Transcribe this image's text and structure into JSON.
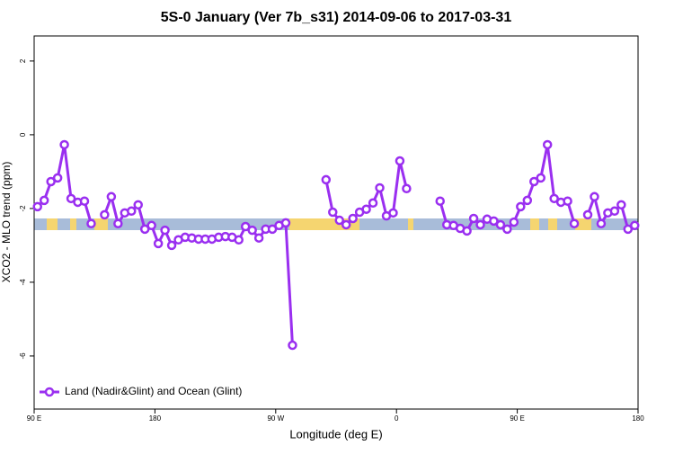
{
  "chart_data": {
    "type": "line",
    "title": "5S-0 January (Ver 7b_s31)   2014-09-06 to 2017-03-31",
    "x_label": "Longitude (deg E)",
    "y_label": "XCO2 - MLO trend (ppm)",
    "x": [
      92.5,
      97.5,
      102.5,
      107.5,
      112.5,
      117.5,
      122.5,
      127.5,
      132.5,
      137.5,
      142.5,
      147.5,
      152.5,
      157.5,
      162.5,
      167.5,
      172.5,
      177.5,
      182.5,
      187.5,
      192.5,
      197.5,
      202.5,
      207.5,
      212.5,
      217.5,
      222.5,
      227.5,
      232.5,
      237.5,
      242.5,
      247.5,
      252.5,
      257.5,
      262.5,
      267.5,
      272.5,
      277.5,
      282.5,
      287.5,
      292.5,
      297.5,
      302.5,
      307.5,
      312.5,
      317.5,
      322.5,
      327.5,
      332.5,
      337.5,
      342.5,
      347.5,
      352.5,
      357.5,
      362.5,
      367.5,
      372.5,
      377.5,
      382.5,
      387.5,
      392.5,
      397.5,
      402.5,
      407.5,
      412.5,
      417.5,
      422.5,
      427.5,
      432.5,
      437.5,
      442.5,
      447.5,
      452.5,
      457.5,
      462.5,
      467.5,
      472.5,
      477.5,
      482.5,
      487.5,
      492.5,
      497.5,
      502.5,
      507.5,
      512.5,
      517.5,
      522.5,
      527.5,
      532.5,
      537.5
    ],
    "series": [
      {
        "name": "Land (Nadir&Glint) and Ocean (Glint)",
        "color": "#9a2ff0",
        "values": [
          -1.95,
          -1.78,
          -1.27,
          -1.17,
          -0.27,
          -1.73,
          -1.83,
          -1.8,
          -2.41,
          null,
          -2.17,
          -1.68,
          -2.41,
          -2.12,
          -2.07,
          -1.9,
          -2.56,
          -2.46,
          -2.95,
          -2.59,
          -3.0,
          -2.85,
          -2.78,
          -2.8,
          -2.83,
          -2.83,
          -2.83,
          -2.78,
          -2.76,
          -2.78,
          -2.85,
          -2.49,
          -2.59,
          -2.8,
          -2.56,
          -2.56,
          -2.46,
          -2.39,
          -5.71,
          null,
          null,
          null,
          null,
          -1.22,
          -2.1,
          -2.32,
          -2.44,
          -2.27,
          -2.1,
          -2.02,
          -1.85,
          -1.44,
          -2.2,
          -2.12,
          -0.71,
          -1.46,
          null,
          null,
          null,
          null,
          -1.8,
          -2.44,
          -2.46,
          -2.54,
          -2.61,
          -2.27,
          -2.44,
          -2.29,
          -2.34,
          -2.44,
          -2.56,
          -2.37,
          -1.95,
          -1.78,
          -1.27,
          -1.17,
          -0.27,
          -1.73,
          -1.83,
          -1.8,
          -2.41,
          null,
          -2.17,
          -1.68,
          -2.41,
          -2.12,
          -2.07,
          -1.9,
          -2.56,
          -2.46
        ]
      }
    ],
    "xlim": [
      90,
      540
    ],
    "xticks": [
      {
        "value": 90,
        "label": "90 E"
      },
      180,
      {
        "value": 270,
        "label": "90 W"
      },
      {
        "value": 360,
        "label": "0"
      },
      {
        "value": 450,
        "label": "90 E"
      },
      {
        "value": 540,
        "label": "180"
      }
    ],
    "ylim": [
      -7.44,
      2.68
    ],
    "yticks": [
      -6,
      -4,
      -2,
      0,
      2
    ],
    "grid": false,
    "legend": "bottom-left"
  }
}
